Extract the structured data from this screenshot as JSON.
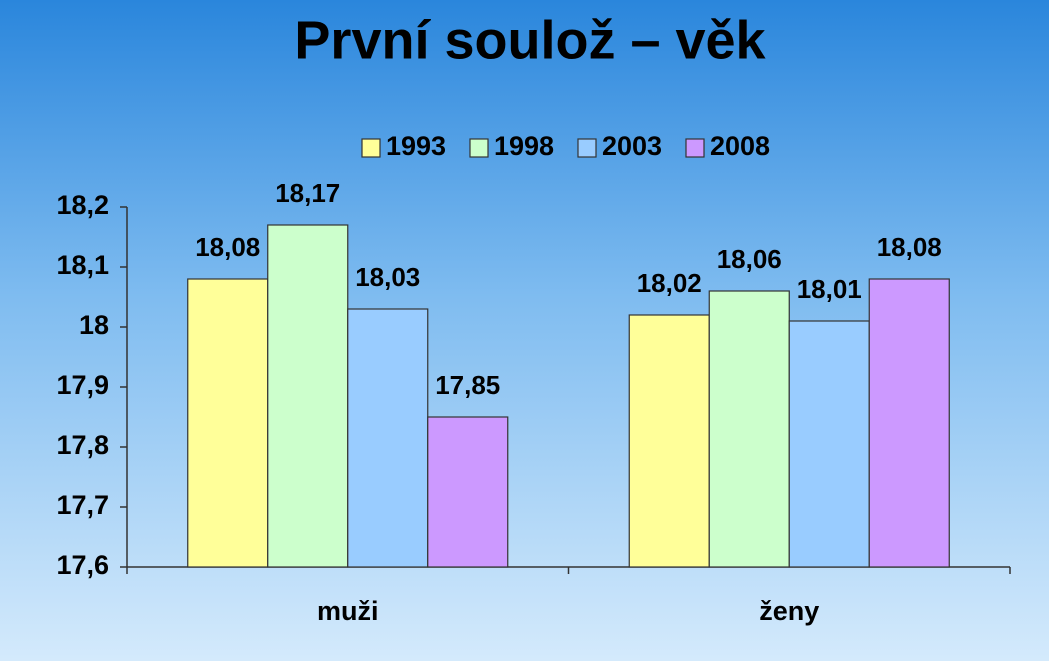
{
  "chart_data": {
    "type": "bar",
    "title": "První soulož – věk",
    "categories": [
      "muži",
      "ženy"
    ],
    "series": [
      {
        "name": "1993",
        "color": "#ffff99",
        "values": [
          18.08,
          18.02
        ],
        "value_labels": [
          "18,08",
          "18,02"
        ]
      },
      {
        "name": "1998",
        "color": "#ccffcc",
        "values": [
          18.17,
          18.06
        ],
        "value_labels": [
          "18,17",
          "18,06"
        ]
      },
      {
        "name": "2003",
        "color": "#99ccff",
        "values": [
          18.03,
          18.01
        ],
        "value_labels": [
          "18,03",
          "18,01"
        ]
      },
      {
        "name": "2008",
        "color": "#cc99ff",
        "values": [
          17.85,
          18.08
        ],
        "value_labels": [
          "17,85",
          "18,08"
        ]
      }
    ],
    "ylim": [
      17.6,
      18.2
    ],
    "yticks": [
      {
        "value": 17.6,
        "label": "17,6"
      },
      {
        "value": 17.7,
        "label": "17,7"
      },
      {
        "value": 17.8,
        "label": "17,8"
      },
      {
        "value": 17.9,
        "label": "17,9"
      },
      18,
      {
        "value": 18.1,
        "label": "18,1"
      },
      {
        "value": 18.2,
        "label": "18,2"
      }
    ],
    "legend": "top"
  }
}
